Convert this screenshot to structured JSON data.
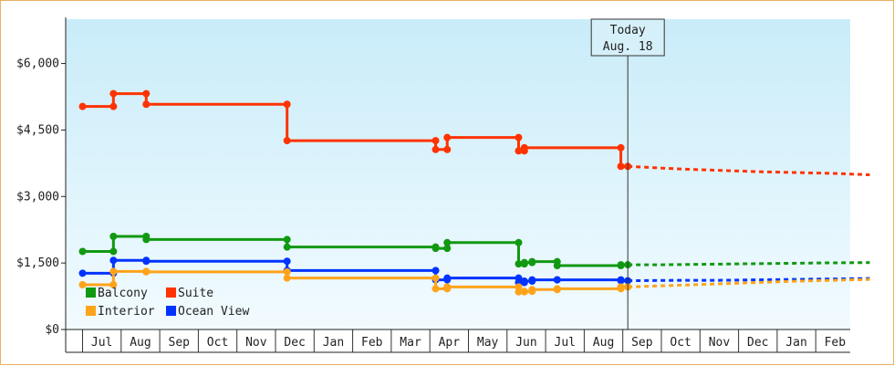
{
  "chart_data": {
    "type": "line",
    "y_ticks": [
      "$0",
      "$1,500",
      "$3,000",
      "$4,500",
      "$6,000"
    ],
    "y_tick_values": [
      0,
      1500,
      3000,
      4500,
      6000
    ],
    "ylim": [
      0,
      7000
    ],
    "months": [
      "Jul",
      "Aug",
      "Sep",
      "Oct",
      "Nov",
      "Dec",
      "Jan",
      "Feb",
      "Mar",
      "Apr",
      "May",
      "Jun",
      "Jul",
      "Aug",
      "Sep",
      "Oct",
      "Nov",
      "Dec",
      "Jan",
      "Feb"
    ],
    "month_index_range": [
      -0.55,
      19.9
    ],
    "today": {
      "line1": "Today",
      "line2": "Aug. 18",
      "x": 13.63
    },
    "grid": "vertical month separators",
    "background": "gradient light blue",
    "legend_position": "bottom-left",
    "series": [
      {
        "name": "Suite",
        "color": "#ff3300",
        "points": [
          [
            -0.5,
            5030
          ],
          [
            0.3,
            5030
          ],
          [
            0.3,
            5320
          ],
          [
            1.15,
            5320
          ],
          [
            1.15,
            5080
          ],
          [
            4.8,
            5080
          ],
          [
            4.8,
            4260
          ],
          [
            8.65,
            4260
          ],
          [
            8.65,
            4060
          ],
          [
            8.95,
            4060
          ],
          [
            8.95,
            4330
          ],
          [
            10.8,
            4330
          ],
          [
            10.8,
            4030
          ],
          [
            10.95,
            4030
          ],
          [
            10.95,
            4100
          ],
          [
            13.45,
            4100
          ],
          [
            13.45,
            3680
          ],
          [
            13.63,
            3680
          ]
        ],
        "forecast": [
          [
            13.63,
            3680
          ],
          [
            15,
            3620
          ],
          [
            16,
            3590
          ],
          [
            17,
            3560
          ],
          [
            18,
            3540
          ],
          [
            19,
            3520
          ],
          [
            19.9,
            3490
          ]
        ]
      },
      {
        "name": "Balcony",
        "color": "#119911",
        "points": [
          [
            -0.5,
            1760
          ],
          [
            0.3,
            1760
          ],
          [
            0.3,
            2100
          ],
          [
            1.15,
            2100
          ],
          [
            1.15,
            2030
          ],
          [
            4.8,
            2030
          ],
          [
            4.8,
            1860
          ],
          [
            8.65,
            1860
          ],
          [
            8.65,
            1830
          ],
          [
            8.95,
            1830
          ],
          [
            8.95,
            1960
          ],
          [
            10.8,
            1960
          ],
          [
            10.8,
            1480
          ],
          [
            10.95,
            1480
          ],
          [
            10.95,
            1510
          ],
          [
            11.15,
            1510
          ],
          [
            11.15,
            1530
          ],
          [
            11.8,
            1530
          ],
          [
            11.8,
            1440
          ],
          [
            13.45,
            1440
          ],
          [
            13.45,
            1460
          ],
          [
            13.63,
            1460
          ]
        ],
        "forecast": [
          [
            13.63,
            1460
          ],
          [
            14.5,
            1460
          ],
          [
            15.5,
            1470
          ],
          [
            16.5,
            1480
          ],
          [
            17.5,
            1490
          ],
          [
            18.5,
            1500
          ],
          [
            19.9,
            1510
          ]
        ]
      },
      {
        "name": "Ocean View",
        "color": "#0033ff",
        "points": [
          [
            -0.5,
            1270
          ],
          [
            0.3,
            1270
          ],
          [
            0.3,
            1560
          ],
          [
            1.15,
            1560
          ],
          [
            1.15,
            1540
          ],
          [
            4.8,
            1540
          ],
          [
            4.8,
            1330
          ],
          [
            8.65,
            1330
          ],
          [
            8.65,
            1120
          ],
          [
            8.95,
            1120
          ],
          [
            8.95,
            1160
          ],
          [
            10.8,
            1160
          ],
          [
            10.8,
            1060
          ],
          [
            10.95,
            1060
          ],
          [
            10.95,
            1090
          ],
          [
            11.15,
            1090
          ],
          [
            11.15,
            1120
          ],
          [
            11.8,
            1120
          ],
          [
            11.8,
            1120
          ],
          [
            13.45,
            1120
          ],
          [
            13.45,
            1100
          ],
          [
            13.63,
            1100
          ]
        ],
        "forecast": [
          [
            13.63,
            1100
          ],
          [
            15,
            1110
          ],
          [
            16,
            1110
          ],
          [
            17,
            1120
          ],
          [
            18,
            1130
          ],
          [
            19,
            1140
          ],
          [
            19.9,
            1150
          ]
        ]
      },
      {
        "name": "Interior",
        "color": "#ffa31a",
        "points": [
          [
            -0.5,
            1010
          ],
          [
            0.3,
            1010
          ],
          [
            0.3,
            1310
          ],
          [
            1.15,
            1310
          ],
          [
            1.15,
            1300
          ],
          [
            4.8,
            1300
          ],
          [
            4.8,
            1160
          ],
          [
            8.65,
            1160
          ],
          [
            8.65,
            920
          ],
          [
            8.95,
            920
          ],
          [
            8.95,
            960
          ],
          [
            10.8,
            960
          ],
          [
            10.8,
            850
          ],
          [
            10.95,
            850
          ],
          [
            10.95,
            860
          ],
          [
            11.15,
            860
          ],
          [
            11.15,
            900
          ],
          [
            11.8,
            900
          ],
          [
            11.8,
            920
          ],
          [
            13.45,
            920
          ],
          [
            13.45,
            960
          ],
          [
            13.63,
            960
          ]
        ],
        "forecast": [
          [
            13.63,
            960
          ],
          [
            15,
            1000
          ],
          [
            16,
            1030
          ],
          [
            17,
            1060
          ],
          [
            18,
            1090
          ],
          [
            19,
            1110
          ],
          [
            19.9,
            1130
          ]
        ]
      }
    ],
    "legend": [
      {
        "name": "Balcony",
        "color": "#119911"
      },
      {
        "name": "Suite",
        "color": "#ff3300"
      },
      {
        "name": "Interior",
        "color": "#ffa31a"
      },
      {
        "name": "Ocean View",
        "color": "#0033ff"
      }
    ]
  }
}
